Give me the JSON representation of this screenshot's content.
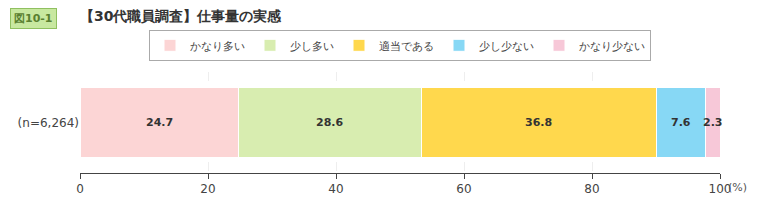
{
  "chart_data": {
    "type": "bar",
    "title": "【30代職員調査】仕事量の実感",
    "annotations": [
      "図10-1"
    ],
    "categories": [
      "(n=6,264)"
    ],
    "series": [
      {
        "name": "かなり多い",
        "color": "#fcd5d5",
        "values": [
          24.7
        ]
      },
      {
        "name": "少し多い",
        "color": "#d8edb0",
        "values": [
          28.6
        ]
      },
      {
        "name": "適当である",
        "color": "#ffd84d",
        "values": [
          36.8
        ]
      },
      {
        "name": "少し少ない",
        "color": "#87d8f5",
        "values": [
          7.6
        ]
      },
      {
        "name": "かなり少ない",
        "color": "#f7c8d8",
        "values": [
          2.3
        ]
      }
    ],
    "orientation": "horizontal",
    "stacked": true,
    "data_labels": true,
    "xlabel": "(%)",
    "xlim": [
      0,
      100
    ],
    "xticks": [
      0,
      20,
      40,
      60,
      80,
      100
    ],
    "grid": true,
    "legend": "top"
  }
}
